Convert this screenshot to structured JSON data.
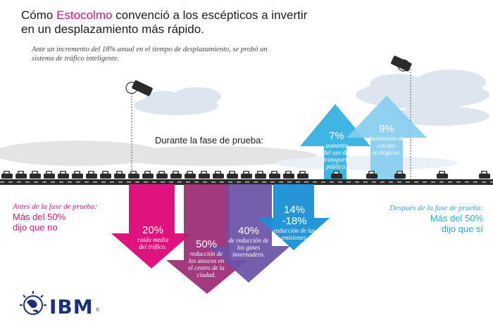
{
  "headline": {
    "pre": "Cómo ",
    "highlight": "Estocolmo",
    "post": " convenció a los escépticos a invertir en un desplazamiento más rápido."
  },
  "intro": "Ante un incremento del 18% anual en el tiempo de desplazamiento, se probó un sistema de tráfico inteligente.",
  "phase_label": "Durante la fase de prueba:",
  "before": {
    "label": "Antes de la fase de prueba:",
    "line1": "Más del 50%",
    "line2": "dijo que no"
  },
  "after": {
    "label": "Después de la fase de prueba:",
    "line1": "Más del 50%",
    "line2": "dijo que sí"
  },
  "down_stats": [
    {
      "pct": "20%",
      "text": "caída media del tráfico."
    },
    {
      "pct": "50%",
      "text": "reducción de los atascos en el centro de la ciudad."
    },
    {
      "pct": "40%",
      "text": "de reducción de los gases invernadero."
    },
    {
      "pct": "14% -18%",
      "text": "reducción de las emisiones."
    }
  ],
  "up_stats": [
    {
      "pct": "7%",
      "text": "aumento del uso del transporte público."
    },
    {
      "pct": "9%",
      "text": "incremento de coches ecológicos."
    }
  ],
  "brand": "IBM",
  "brand_mark": "®",
  "colors": {
    "magenta": "#e0127e",
    "plum": "#9c2a75",
    "purple": "#6b52a6",
    "blue": "#1a8fd6",
    "sky": "#3fb5e3",
    "sky_light": "#86cdee",
    "navy": "#1a2f80",
    "text": "#1c1c1c"
  },
  "icons": [
    "camera-icon",
    "globe-icon"
  ]
}
